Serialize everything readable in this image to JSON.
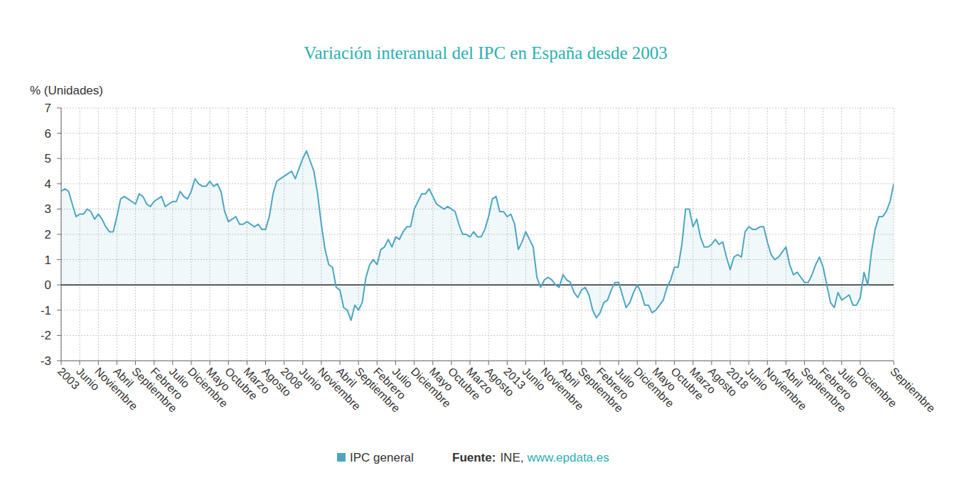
{
  "chart_data": {
    "type": "line",
    "title": "Variación interanual del IPC en España desde 2003",
    "y_label": "% (Unidades)",
    "source": {
      "label": "Fuente:",
      "text": "INE,",
      "link": "www.epdata.es"
    },
    "categories": [
      "2003",
      null,
      null,
      null,
      null,
      "Junio",
      null,
      null,
      null,
      null,
      "Noviembre",
      null,
      null,
      null,
      null,
      "Abril",
      null,
      null,
      null,
      null,
      "Septiembre",
      null,
      null,
      null,
      null,
      "Febrero",
      null,
      null,
      null,
      null,
      "Julio",
      null,
      null,
      null,
      null,
      "Diciembre",
      null,
      null,
      null,
      null,
      "Mayo",
      null,
      null,
      null,
      null,
      "Octubre",
      null,
      null,
      null,
      null,
      "Marzo",
      null,
      null,
      null,
      null,
      "Agosto",
      null,
      null,
      null,
      null,
      "2008",
      null,
      null,
      null,
      null,
      "Junio",
      null,
      null,
      null,
      null,
      "Noviembre",
      null,
      null,
      null,
      null,
      "Abril",
      null,
      null,
      null,
      null,
      "Septiembre",
      null,
      null,
      null,
      null,
      "Febrero",
      null,
      null,
      null,
      null,
      "Julio",
      null,
      null,
      null,
      null,
      "Diciembre",
      null,
      null,
      null,
      null,
      "Mayo",
      null,
      null,
      null,
      null,
      "Octubre",
      null,
      null,
      null,
      null,
      "Marzo",
      null,
      null,
      null,
      null,
      "Agosto",
      null,
      null,
      null,
      null,
      "2013",
      null,
      null,
      null,
      null,
      "Junio",
      null,
      null,
      null,
      null,
      "Noviembre",
      null,
      null,
      null,
      null,
      "Abril",
      null,
      null,
      null,
      null,
      "Septiembre",
      null,
      null,
      null,
      null,
      "Febrero",
      null,
      null,
      null,
      null,
      "Julio",
      null,
      null,
      null,
      null,
      "Diciembre",
      null,
      null,
      null,
      null,
      "Mayo",
      null,
      null,
      null,
      null,
      "Octubre",
      null,
      null,
      null,
      null,
      "Marzo",
      null,
      null,
      null,
      null,
      "Agosto",
      null,
      null,
      null,
      null,
      "2018",
      null,
      null,
      null,
      null,
      "Junio",
      null,
      null,
      null,
      null,
      "Noviembre",
      null,
      null,
      null,
      null,
      "Abril",
      null,
      null,
      null,
      null,
      "Septiembre",
      null,
      null,
      null,
      null,
      "Febrero",
      null,
      null,
      null,
      null,
      "Julio",
      null,
      null,
      null,
      null,
      "Diciembre",
      null,
      null,
      null,
      null,
      null,
      null,
      null,
      null,
      "Septiembre"
    ],
    "series": [
      {
        "name": "IPC general",
        "color": "#4ba6c4",
        "values": [
          3.7,
          3.8,
          3.7,
          3.2,
          2.7,
          2.8,
          2.8,
          3.0,
          2.9,
          2.6,
          2.8,
          2.6,
          2.3,
          2.1,
          2.1,
          2.7,
          3.4,
          3.5,
          3.4,
          3.3,
          3.2,
          3.6,
          3.5,
          3.2,
          3.1,
          3.3,
          3.4,
          3.5,
          3.1,
          3.2,
          3.3,
          3.3,
          3.7,
          3.5,
          3.4,
          3.7,
          4.2,
          4.0,
          3.9,
          3.9,
          4.1,
          3.9,
          4.0,
          3.7,
          2.9,
          2.5,
          2.6,
          2.7,
          2.4,
          2.4,
          2.5,
          2.4,
          2.3,
          2.4,
          2.2,
          2.2,
          2.7,
          3.6,
          4.1,
          4.2,
          4.3,
          4.4,
          4.5,
          4.2,
          4.6,
          5.0,
          5.3,
          4.9,
          4.5,
          3.6,
          2.4,
          1.4,
          0.8,
          0.7,
          -0.1,
          -0.2,
          -0.9,
          -1.0,
          -1.4,
          -0.8,
          -1.0,
          -0.7,
          0.3,
          0.8,
          1.0,
          0.8,
          1.4,
          1.5,
          1.8,
          1.5,
          1.9,
          1.8,
          2.1,
          2.3,
          2.3,
          3.0,
          3.3,
          3.6,
          3.6,
          3.8,
          3.5,
          3.2,
          3.1,
          3.0,
          3.1,
          3.0,
          2.9,
          2.4,
          2.0,
          2.0,
          1.9,
          2.1,
          1.9,
          1.9,
          2.2,
          2.7,
          3.4,
          3.5,
          2.9,
          2.9,
          2.7,
          2.8,
          2.4,
          1.4,
          1.7,
          2.1,
          1.8,
          1.5,
          0.3,
          -0.1,
          0.2,
          0.3,
          0.2,
          0.0,
          -0.1,
          0.4,
          0.2,
          0.1,
          -0.3,
          -0.5,
          -0.2,
          -0.1,
          -0.4,
          -1.0,
          -1.3,
          -1.1,
          -0.7,
          -0.6,
          -0.2,
          0.1,
          0.1,
          -0.4,
          -0.9,
          -0.7,
          -0.3,
          0.0,
          -0.3,
          -0.8,
          -0.8,
          -1.1,
          -1.0,
          -0.8,
          -0.6,
          -0.1,
          0.2,
          0.7,
          0.7,
          1.6,
          3.0,
          3.0,
          2.3,
          2.6,
          1.9,
          1.5,
          1.5,
          1.6,
          1.8,
          1.6,
          1.7,
          1.1,
          0.6,
          1.1,
          1.2,
          1.1,
          2.1,
          2.3,
          2.2,
          2.2,
          2.3,
          2.3,
          1.7,
          1.2,
          1.0,
          1.1,
          1.3,
          1.5,
          0.8,
          0.4,
          0.5,
          0.3,
          0.1,
          0.1,
          0.4,
          0.8,
          1.1,
          0.7,
          0.0,
          -0.7,
          -0.9,
          -0.3,
          -0.6,
          -0.5,
          -0.4,
          -0.8,
          -0.8,
          -0.5,
          0.5,
          0.0,
          1.3,
          2.2,
          2.7,
          2.7,
          2.9,
          3.3,
          4.0
        ]
      }
    ],
    "ylim": [
      -3,
      7
    ],
    "yticks": [
      -3,
      -2,
      -1,
      0,
      1,
      2,
      3,
      4,
      5,
      6,
      7
    ],
    "grid": true,
    "legend": "bottom"
  }
}
